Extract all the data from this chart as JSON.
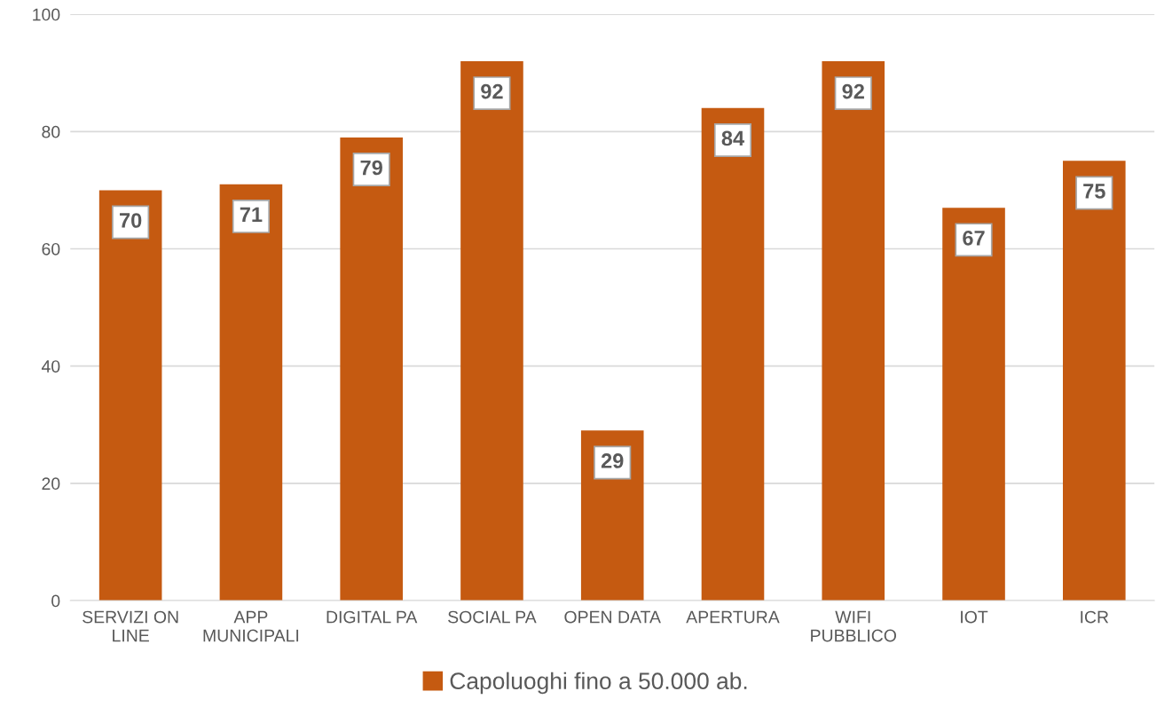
{
  "chart_data": {
    "type": "bar",
    "categories": [
      "SERVIZI ON\nLINE",
      "APP\nMUNICIPALI",
      "DIGITAL PA",
      "SOCIAL PA",
      "OPEN DATA",
      "APERTURA",
      "WIFI\nPUBBLICO",
      "IOT",
      "ICR"
    ],
    "series": [
      {
        "name": "Capoluoghi fino a 50.000 ab.",
        "color": "#c55a11",
        "values": [
          70,
          71,
          79,
          92,
          29,
          84,
          92,
          67,
          75
        ]
      }
    ],
    "ylim": [
      0,
      100
    ],
    "yticks": [
      0,
      20,
      40,
      60,
      80,
      100
    ],
    "grid": "y",
    "legend": "bottom",
    "data_labels": true
  }
}
